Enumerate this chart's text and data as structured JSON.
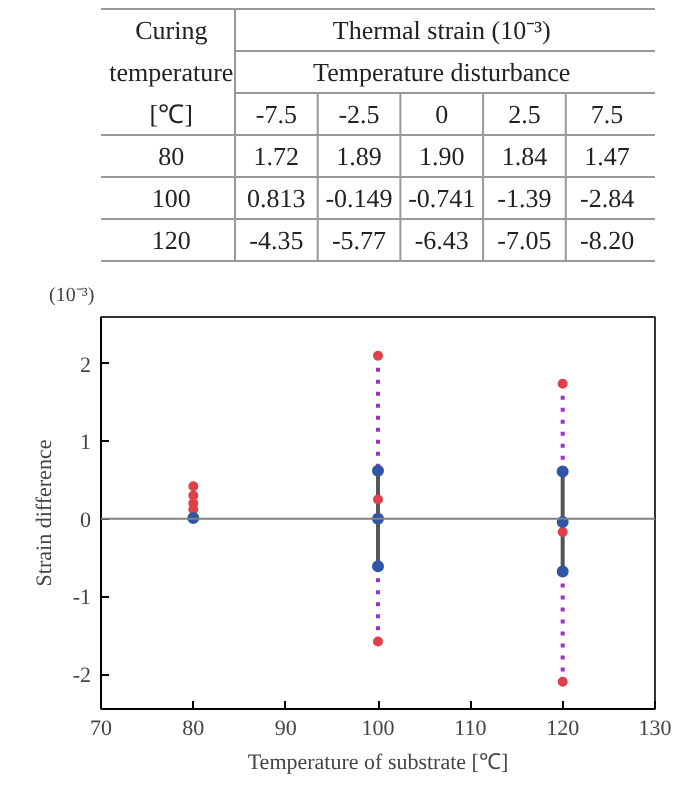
{
  "chart_data": [
    {
      "type": "heatmap",
      "title": "Thermal strain (10⁻³)",
      "subtitle": "Temperature disturbance",
      "ylabel": "Curing temperature [℃]",
      "categories": [
        "-7.5",
        "-2.5",
        "0",
        "2.5",
        "7.5"
      ],
      "y_categories": [
        "80",
        "100",
        "120"
      ],
      "cells": [
        [
          1.72,
          1.89,
          1.9,
          1.84,
          1.47
        ],
        [
          0.813,
          -0.149,
          -0.741,
          -1.39,
          -2.84
        ],
        [
          -4.35,
          -5.77,
          -6.43,
          -7.05,
          -8.2
        ]
      ],
      "cell_labels": [
        [
          "1.72",
          "1.89",
          "1.90",
          "1.84",
          "1.47"
        ],
        [
          "0.813",
          "-0.149",
          "-0.741",
          "-1.39",
          "-2.84"
        ],
        [
          "-4.35",
          "-5.77",
          "-6.43",
          "-7.05",
          "-8.20"
        ]
      ]
    },
    {
      "type": "scatter",
      "xlabel": "Temperature of substrate [℃]",
      "ylabel": "Strain difference",
      "annotations": [
        "(10⁻³)"
      ],
      "xlim": [
        70,
        130
      ],
      "xticks": [
        70,
        80,
        90,
        100,
        110,
        120,
        130
      ],
      "ylim": [
        -2.45,
        2.6
      ],
      "yticks": [
        -2,
        -1,
        0,
        1,
        2
      ],
      "ref_lines": [
        {
          "axis": "y",
          "value": 0,
          "color": "#808080",
          "line_style": "solid"
        }
      ],
      "series": [
        {
          "type": "line",
          "color": "#9932cc",
          "line_style": "dotted",
          "marker": "none",
          "x": [
            100,
            100
          ],
          "values": [
            2.1,
            0.62
          ]
        },
        {
          "type": "line",
          "color": "#9932cc",
          "line_style": "dotted",
          "marker": "none",
          "x": [
            100,
            100
          ],
          "values": [
            -0.61,
            -1.58
          ]
        },
        {
          "type": "line",
          "color": "#9932cc",
          "line_style": "dotted",
          "marker": "none",
          "x": [
            120,
            120
          ],
          "values": [
            1.74,
            0.61
          ]
        },
        {
          "type": "line",
          "color": "#9932cc",
          "line_style": "dotted",
          "marker": "none",
          "x": [
            120,
            120
          ],
          "values": [
            -0.68,
            -2.1
          ]
        },
        {
          "type": "line",
          "color": "#555555",
          "line_style": "solid",
          "marker": "none",
          "x": [
            100,
            100
          ],
          "values": [
            -0.61,
            0.62
          ]
        },
        {
          "type": "line",
          "color": "#555555",
          "line_style": "solid",
          "marker": "none",
          "x": [
            120,
            120
          ],
          "values": [
            -0.68,
            0.61
          ]
        },
        {
          "type": "scatter",
          "color": "#e0404a",
          "marker": "circle",
          "x": [
            80,
            80,
            80,
            80,
            100,
            100,
            100,
            120,
            120,
            120
          ],
          "values": [
            0.42,
            0.3,
            0.2,
            0.12,
            2.1,
            0.25,
            -1.58,
            1.74,
            -0.17,
            -2.1
          ]
        },
        {
          "type": "scatter",
          "color": "#2f55a4",
          "marker": "circle",
          "x": [
            80,
            100,
            100,
            100,
            120,
            120,
            120
          ],
          "values": [
            0.01,
            0.62,
            0.0,
            -0.61,
            0.61,
            -0.04,
            -0.68
          ]
        }
      ]
    }
  ]
}
